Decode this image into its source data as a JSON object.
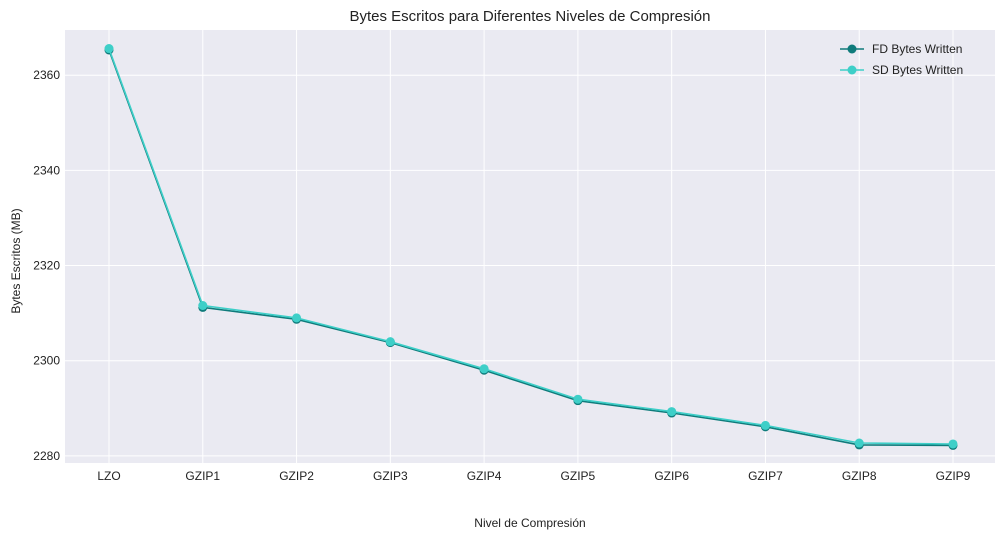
{
  "chart_data": {
    "type": "line",
    "title": "Bytes Escritos para Diferentes Niveles de Compresión",
    "xlabel": "Nivel de Compresión",
    "ylabel": "Bytes Escritos (MB)",
    "categories": [
      "LZO",
      "GZIP1",
      "GZIP2",
      "GZIP3",
      "GZIP4",
      "GZIP5",
      "GZIP6",
      "GZIP7",
      "GZIP8",
      "GZIP9"
    ],
    "ylim": [
      2278.5,
      2369.5
    ],
    "yticks": [
      2280,
      2300,
      2320,
      2340,
      2360
    ],
    "grid": true,
    "legend_position": "top-right",
    "series": [
      {
        "name": "FD Bytes Written",
        "color": "#0f7b7b",
        "values": [
          2365.3,
          2311.2,
          2308.7,
          2303.8,
          2298.0,
          2291.6,
          2289.0,
          2286.1,
          2282.3,
          2282.2
        ]
      },
      {
        "name": "SD Bytes Written",
        "color": "#3ecfc8",
        "values": [
          2365.6,
          2311.6,
          2309.0,
          2304.0,
          2298.3,
          2291.9,
          2289.3,
          2286.4,
          2282.7,
          2282.5
        ]
      }
    ]
  }
}
